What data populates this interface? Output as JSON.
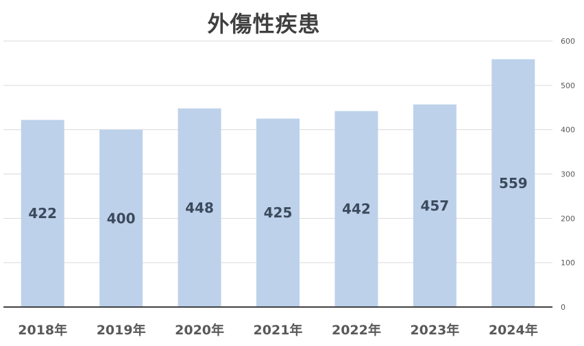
{
  "chart_data": {
    "type": "bar",
    "title": "外傷性疾患",
    "categories": [
      "2018年",
      "2019年",
      "2020年",
      "2021年",
      "2022年",
      "2023年",
      "2024年"
    ],
    "values": [
      422,
      400,
      448,
      425,
      442,
      457,
      559
    ],
    "ylim": [
      0,
      600
    ],
    "yticks": [
      0,
      100,
      200,
      300,
      400,
      500,
      600
    ],
    "y_axis_side": "right",
    "grid": true,
    "legend": "none",
    "data_labels": true,
    "bar_color": "#bdd1ea"
  }
}
